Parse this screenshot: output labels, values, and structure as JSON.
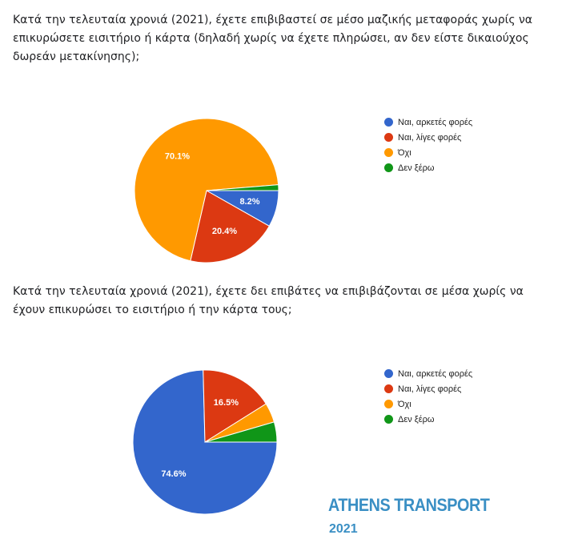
{
  "chart_data": [
    {
      "type": "pie",
      "title": "Κατά την τελευταία χρονιά (2021), έχετε επιβιβαστεί σε μέσο μαζικής μεταφοράς χωρίς να επικυρώσετε εισιτήριο ή κάρτα (δηλαδή χωρίς να έχετε πληρώσει, αν δεν είστε δικαιούχος δωρεάν μετακίνησης);",
      "categories": [
        "Ναι, αρκετές φορές",
        "Ναι, λίγες φορές",
        "Όχι",
        "Δεν ξέρω"
      ],
      "values": [
        8.2,
        20.4,
        70.1,
        1.3
      ],
      "labels": [
        "8.2%",
        "20.4%",
        "70.1%",
        ""
      ],
      "colors": [
        "#3366cc",
        "#dc3912",
        "#ff9900",
        "#109618"
      ],
      "legend_position": "right"
    },
    {
      "type": "pie",
      "title": "Κατά την τελευταία χρονιά (2021), έχετε δει επιβάτες να επιβιβάζονται σε μέσα χωρίς να έχουν επικυρώσει το εισιτήριο ή την κάρτα τους;",
      "categories": [
        "Ναι, αρκετές φορές",
        "Ναι, λίγες φορές",
        "Όχι",
        "Δεν ξέρω"
      ],
      "values": [
        74.6,
        16.5,
        4.4,
        4.5
      ],
      "labels": [
        "74.6%",
        "16.5%",
        "",
        ""
      ],
      "colors": [
        "#3366cc",
        "#dc3912",
        "#ff9900",
        "#109618"
      ],
      "legend_position": "right"
    }
  ],
  "branding": {
    "name": "ATHENS TRANSPORT",
    "year": "2021"
  }
}
